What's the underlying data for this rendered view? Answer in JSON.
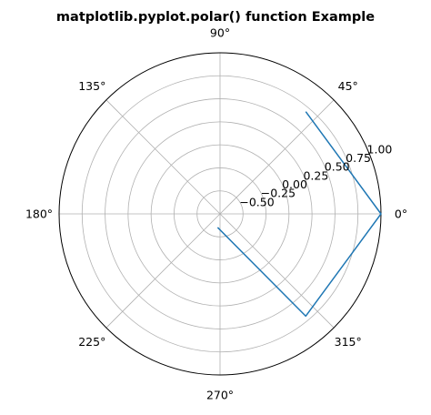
{
  "chart_data": {
    "type": "line",
    "projection": "polar",
    "title": "matplotlib.pyplot.polar() function Example",
    "theta_ticks": [
      {
        "deg": 0,
        "label": "0°"
      },
      {
        "deg": 45,
        "label": "45°"
      },
      {
        "deg": 90,
        "label": "90°"
      },
      {
        "deg": 135,
        "label": "135°"
      },
      {
        "deg": 180,
        "label": "180°"
      },
      {
        "deg": 225,
        "label": "225°"
      },
      {
        "deg": 270,
        "label": "270°"
      },
      {
        "deg": 315,
        "label": "315°"
      }
    ],
    "r_ticks": [
      {
        "value": -0.5,
        "label": "−0.50"
      },
      {
        "value": -0.25,
        "label": "−0.25"
      },
      {
        "value": 0.0,
        "label": "0.00"
      },
      {
        "value": 0.25,
        "label": "0.25"
      },
      {
        "value": 0.5,
        "label": "0.50"
      },
      {
        "value": 0.75,
        "label": "0.75"
      },
      {
        "value": 1.0,
        "label": "1.00"
      }
    ],
    "rlim": [
      -0.75,
      1.0
    ],
    "r_label_angle_deg": 22.5,
    "grid": true,
    "series": [
      {
        "color": "#1f77b4",
        "theta_deg": [
          50,
          0,
          -50,
          -100
        ],
        "r": [
          0.7,
          1.0,
          0.7,
          -0.6
        ]
      }
    ]
  }
}
